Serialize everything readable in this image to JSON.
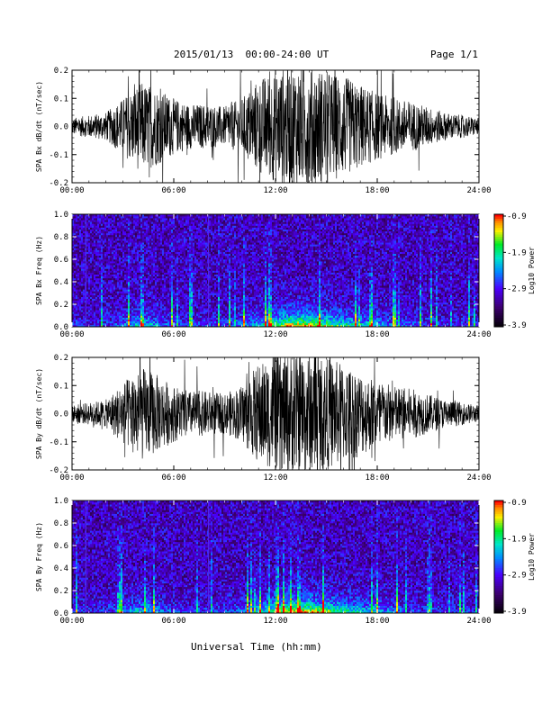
{
  "header": {
    "title": "2015/01/13  00:00-24:00 UT",
    "page": "Page 1/1"
  },
  "xaxis": {
    "label": "Universal Time (hh:mm)",
    "ticks": [
      "00:00",
      "06:00",
      "12:00",
      "18:00",
      "24:00"
    ],
    "range_hours": [
      0,
      24
    ]
  },
  "chart_data": [
    {
      "type": "line",
      "ylabel": "SPA Bx dB/dt (nT/sec)",
      "ylim": [
        -0.2,
        0.2
      ],
      "yticks": [
        "0.2",
        "0.1",
        "0.0",
        "-0.1",
        "-0.2"
      ],
      "envelope_hours": [
        0,
        1,
        2,
        3,
        4,
        5,
        6,
        7,
        8,
        9,
        10,
        11,
        12,
        13,
        14,
        15,
        16,
        17,
        18,
        19,
        20,
        21,
        22,
        23,
        24
      ],
      "envelope_amplitude": [
        0.03,
        0.04,
        0.05,
        0.1,
        0.16,
        0.14,
        0.1,
        0.08,
        0.08,
        0.07,
        0.1,
        0.17,
        0.2,
        0.22,
        0.22,
        0.2,
        0.18,
        0.15,
        0.12,
        0.1,
        0.09,
        0.07,
        0.05,
        0.04,
        0.03
      ]
    },
    {
      "type": "heatmap",
      "ylabel": "SPA Bx Freq (Hz)",
      "ylim": [
        0,
        1.0
      ],
      "yticks": [
        "1.0",
        "0.8",
        "0.6",
        "0.4",
        "0.2",
        "0.0"
      ],
      "colorbar": {
        "label": "Log10 Power",
        "range": [
          -3.9,
          -0.9
        ],
        "ticks": [
          "-0.9",
          "-1.9",
          "-2.9",
          "-3.9"
        ]
      }
    },
    {
      "type": "line",
      "ylabel": "SPA By dB/dt (nT/sec)",
      "ylim": [
        -0.2,
        0.2
      ],
      "yticks": [
        "0.2",
        "0.1",
        "0.0",
        "-0.1",
        "-0.2"
      ],
      "envelope_hours": [
        0,
        1,
        2,
        3,
        4,
        5,
        6,
        7,
        8,
        9,
        10,
        11,
        12,
        13,
        14,
        15,
        16,
        17,
        18,
        19,
        20,
        21,
        22,
        23,
        24
      ],
      "envelope_amplitude": [
        0.03,
        0.04,
        0.05,
        0.11,
        0.17,
        0.14,
        0.1,
        0.08,
        0.08,
        0.07,
        0.1,
        0.18,
        0.2,
        0.22,
        0.22,
        0.2,
        0.18,
        0.15,
        0.12,
        0.1,
        0.09,
        0.07,
        0.05,
        0.04,
        0.03
      ]
    },
    {
      "type": "heatmap",
      "ylabel": "SPA By Freq (Hz)",
      "ylim": [
        0,
        1.0
      ],
      "yticks": [
        "1.0",
        "0.8",
        "0.6",
        "0.4",
        "0.2",
        "0.0"
      ],
      "colorbar": {
        "label": "Log10 Power",
        "range": [
          -3.9,
          -0.9
        ],
        "ticks": [
          "-0.9",
          "-1.9",
          "-2.9",
          "-3.9"
        ]
      }
    }
  ]
}
